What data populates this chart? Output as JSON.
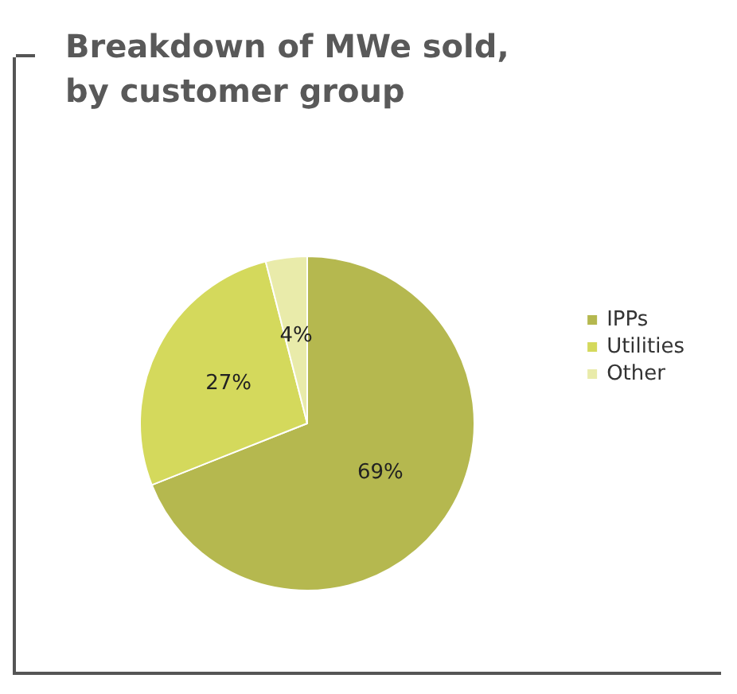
{
  "chart_data": {
    "type": "pie",
    "title": "Breakdown of MWe sold, by customer group",
    "categories": [
      "IPPs",
      "Utilities",
      "Other"
    ],
    "values": [
      69,
      27,
      4
    ],
    "value_labels": [
      "69%",
      "27%",
      "4%"
    ],
    "colors": [
      "#b5b84f",
      "#d4d95c",
      "#e9ebaa"
    ],
    "legend": "right"
  }
}
